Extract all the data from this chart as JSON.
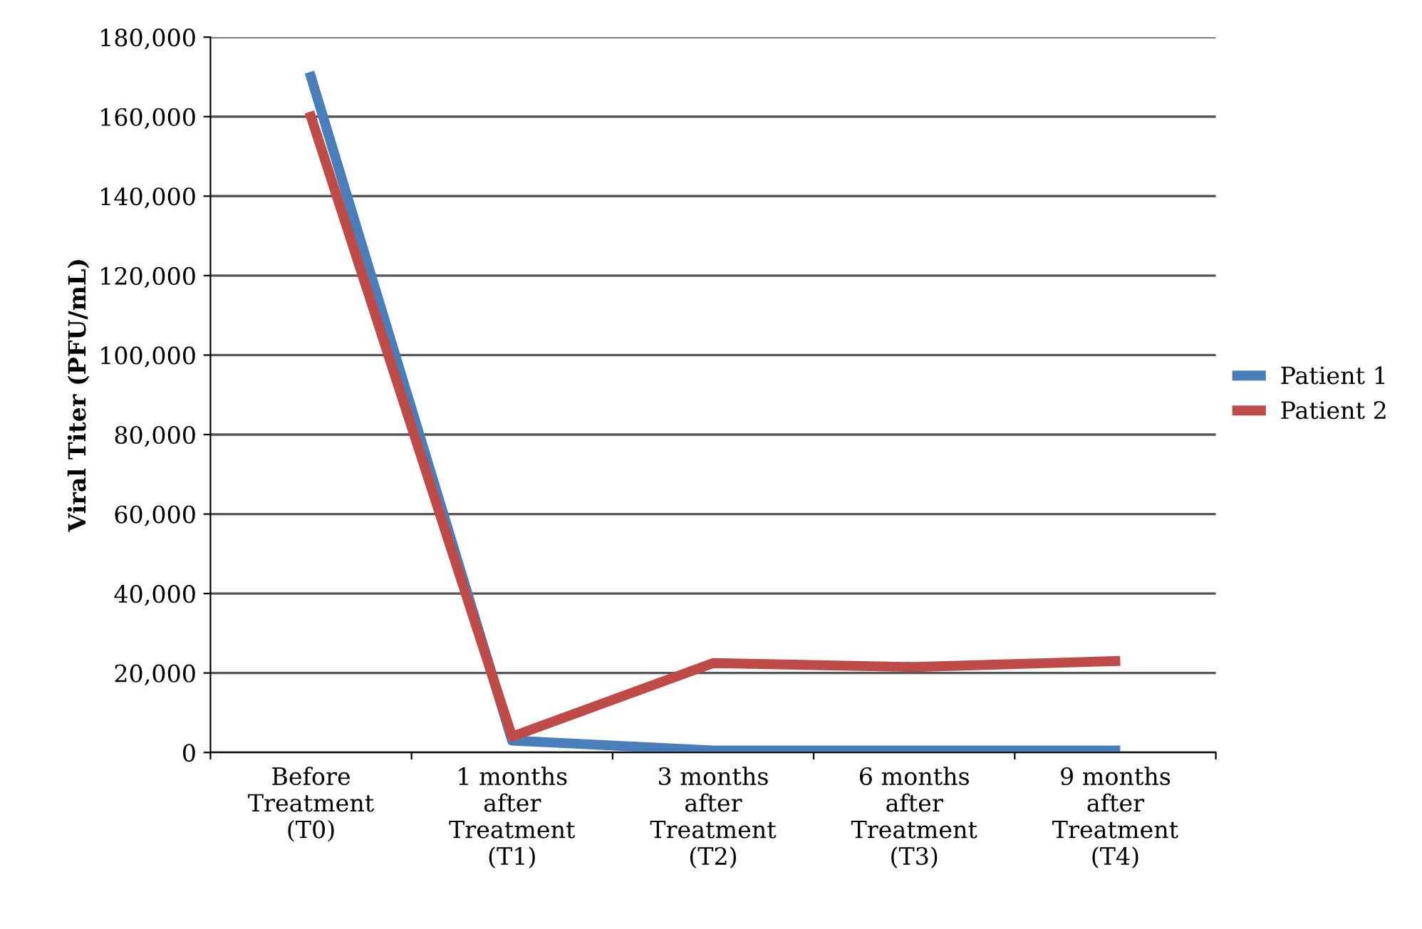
{
  "chart_data": {
    "type": "line",
    "ylabel": "Viral Titer (PFU/mL)",
    "categories": [
      "Before\nTreatment\n(T0)",
      "1 months\nafter\nTreatment\n(T1)",
      "3 months\nafter\nTreatment\n(T2)",
      "6 months\nafter\nTreatment\n(T3)",
      "9 months\nafter\nTreatment\n(T4)"
    ],
    "series": [
      {
        "name": "Patient 1",
        "color": "#4a7ebb",
        "values": [
          170000,
          3000,
          500,
          500,
          500
        ]
      },
      {
        "name": "Patient 2",
        "color": "#be4b48",
        "values": [
          160000,
          4000,
          22500,
          21500,
          23000
        ]
      }
    ],
    "ylim": [
      0,
      180000
    ],
    "yticks": [
      {
        "value": 0,
        "label": "0"
      },
      {
        "value": 20000,
        "label": "20,000"
      },
      {
        "value": 40000,
        "label": "40,000"
      },
      {
        "value": 60000,
        "label": "60,000"
      },
      {
        "value": 80000,
        "label": "80,000"
      },
      {
        "value": 100000,
        "label": "100,000"
      },
      {
        "value": 120000,
        "label": "120,000"
      },
      {
        "value": 140000,
        "label": "140,000"
      },
      {
        "value": 160000,
        "label": "160,000"
      },
      {
        "value": 180000,
        "label": "180,000"
      }
    ],
    "grid": "y",
    "legend": "right",
    "marker": "none",
    "line_style": "solid"
  }
}
